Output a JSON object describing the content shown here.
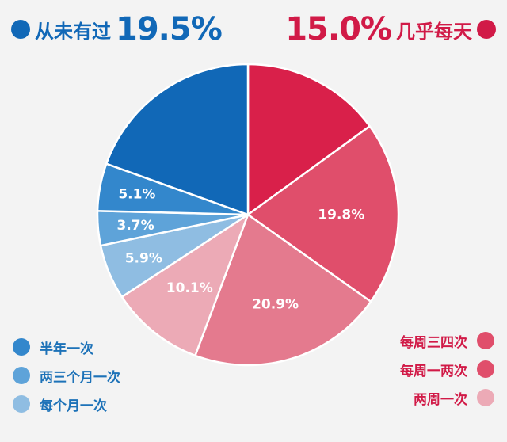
{
  "chart_data": {
    "type": "pie",
    "slices": [
      {
        "label": "几乎每天",
        "value": 15.0,
        "display": "15.0%",
        "color": "#d9204a",
        "label_color": "#d11a47"
      },
      {
        "label": "每周三四次",
        "value": 19.8,
        "display": "19.8%",
        "color": "#e04e6b",
        "label_color": "#d11a47"
      },
      {
        "label": "每周一两次",
        "value": 20.9,
        "display": "20.9%",
        "color": "#e47a8e",
        "label_color": "#d11a47"
      },
      {
        "label": "两周一次",
        "value": 10.1,
        "display": "10.1%",
        "color": "#ecaab6",
        "label_color": "#d11a47"
      },
      {
        "label": "每个月一次",
        "value": 5.9,
        "display": "5.9%",
        "color": "#8fbde2",
        "label_color": "#1d72b8"
      },
      {
        "label": "两三个月一次",
        "value": 3.7,
        "display": "3.7%",
        "color": "#5ea3d9",
        "label_color": "#1d72b8"
      },
      {
        "label": "半年一次",
        "value": 5.1,
        "display": "5.1%",
        "color": "#3387cc",
        "label_color": "#1d72b8"
      },
      {
        "label": "从未有过",
        "value": 19.5,
        "display": "19.5%",
        "color": "#1168b7",
        "label_color": "#1168b7"
      }
    ],
    "legend_placement": "corners"
  },
  "header": {
    "left": {
      "label": "从未有过",
      "pct": "19.5%",
      "color": "#1168b7"
    },
    "right": {
      "label": "几乎每天",
      "pct": "15.0%",
      "color": "#d11a47"
    }
  },
  "legend_left": [
    {
      "label": "半年一次",
      "color": "#3387cc"
    },
    {
      "label": "两三个月一次",
      "color": "#5ea3d9"
    },
    {
      "label": "每个月一次",
      "color": "#8fbde2"
    }
  ],
  "legend_right": [
    {
      "label": "每周三四次",
      "color": "#e04e6b"
    },
    {
      "label": "每周一两次",
      "color": "#e04e6b"
    },
    {
      "label": "两周一次",
      "color": "#ecaab6"
    }
  ],
  "colors": {
    "blue_text": "#1d72b8",
    "red_text": "#d11a47",
    "background": "#f3f3f3"
  }
}
